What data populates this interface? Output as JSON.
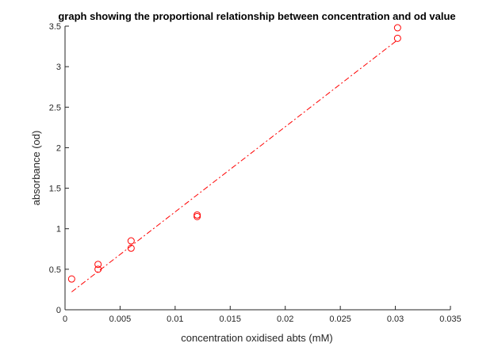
{
  "chart_data": {
    "type": "scatter",
    "title": "graph showing the proportional relationship between concentration and od value",
    "xlabel": "concentration oxidised abts (mM)",
    "ylabel": "absorbance (od)",
    "xlim": [
      0,
      0.035
    ],
    "ylim": [
      0,
      3.5
    ],
    "xticks": [
      0,
      0.005,
      0.01,
      0.015,
      0.02,
      0.025,
      0.03,
      0.035
    ],
    "xtick_labels": [
      "0",
      "0.005",
      "0.01",
      "0.015",
      "0.02",
      "0.025",
      "0.03",
      "0.035"
    ],
    "yticks": [
      0,
      0.5,
      1,
      1.5,
      2,
      2.5,
      3,
      3.5
    ],
    "ytick_labels": [
      "0",
      "0.5",
      "1",
      "1.5",
      "2",
      "2.5",
      "3",
      "3.5"
    ],
    "grid": false,
    "marker_color": "#ff0000",
    "line_color": "#ff0000",
    "series": [
      {
        "type": "scatter",
        "marker": "circle-open",
        "x": [
          0.0006,
          0.003,
          0.003,
          0.006,
          0.006,
          0.012,
          0.012,
          0.0302,
          0.0302
        ],
        "y": [
          0.38,
          0.5,
          0.56,
          0.76,
          0.85,
          1.15,
          1.17,
          3.35,
          3.48
        ]
      },
      {
        "type": "line",
        "style": "dash-dot",
        "x": [
          0.0006,
          0.0302
        ],
        "y": [
          0.22,
          3.33
        ]
      }
    ]
  }
}
